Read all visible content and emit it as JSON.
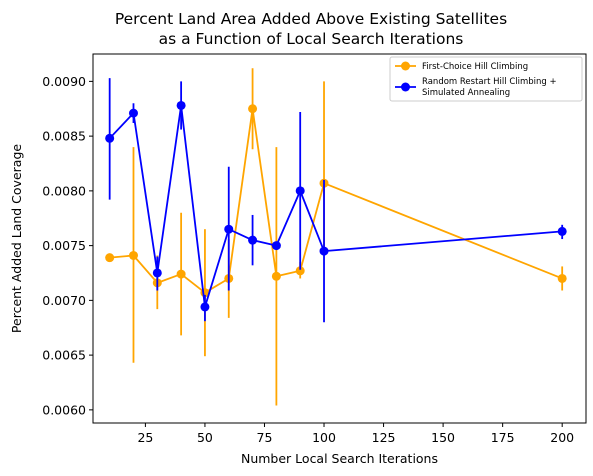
{
  "chart_data": {
    "type": "line",
    "title_lines": [
      "Percent Land Area Added Above Existing Satellites",
      "as a Function of Local Search Iterations"
    ],
    "xlabel": "Number Local Search Iterations",
    "ylabel": "Percent Added Land Coverage",
    "xlim": [
      3,
      210
    ],
    "ylim": [
      0.00588,
      0.00925
    ],
    "xticks": [
      25,
      50,
      75,
      100,
      125,
      150,
      175,
      200
    ],
    "yticks": [
      0.006,
      0.0065,
      0.007,
      0.0075,
      0.008,
      0.0085,
      0.009
    ],
    "ytick_labels": [
      "0.0060",
      "0.0065",
      "0.0070",
      "0.0075",
      "0.0080",
      "0.0085",
      "0.0090"
    ],
    "grid": false,
    "legend_position": "top-right",
    "series": [
      {
        "name": "First-Choice Hill Climbing",
        "color": "#FFA500",
        "x": [
          10,
          20,
          30,
          40,
          50,
          60,
          70,
          80,
          90,
          100,
          200
        ],
        "y": [
          0.00739,
          0.00741,
          0.00716,
          0.00724,
          0.00707,
          0.0072,
          0.00875,
          0.00722,
          0.00727,
          0.00807,
          0.0072
        ],
        "err_low": [
          0.00739,
          0.00643,
          0.00692,
          0.00668,
          0.00649,
          0.00684,
          0.00838,
          0.00604,
          0.0072,
          0.00744,
          0.00709
        ],
        "err_high": [
          0.00739,
          0.0084,
          0.00741,
          0.0078,
          0.00765,
          0.00756,
          0.00912,
          0.0084,
          0.00735,
          0.009,
          0.00731
        ]
      },
      {
        "name_lines": [
          "Random Restart Hill Climbing +",
          "Simulated Annealing"
        ],
        "color": "#0000FF",
        "x": [
          10,
          20,
          30,
          40,
          50,
          60,
          70,
          80,
          90,
          100,
          200
        ],
        "y": [
          0.00848,
          0.00871,
          0.00725,
          0.00878,
          0.00694,
          0.00765,
          0.00755,
          0.0075,
          0.008,
          0.00745,
          0.00763
        ],
        "err_low": [
          0.00792,
          0.00862,
          0.00709,
          0.00856,
          0.00681,
          0.00709,
          0.00732,
          0.0075,
          0.00728,
          0.0068,
          0.00756
        ],
        "err_high": [
          0.00903,
          0.0088,
          0.0074,
          0.009,
          0.00705,
          0.00822,
          0.00778,
          0.0075,
          0.00872,
          0.0081,
          0.00769
        ]
      }
    ]
  }
}
